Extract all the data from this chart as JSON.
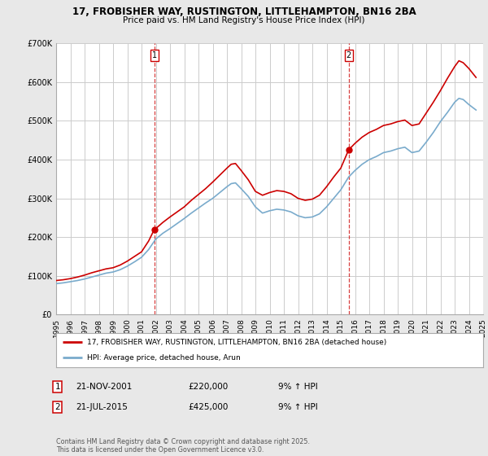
{
  "title_line1": "17, FROBISHER WAY, RUSTINGTON, LITTLEHAMPTON, BN16 2BA",
  "title_line2": "Price paid vs. HM Land Registry's House Price Index (HPI)",
  "background_color": "#e8e8e8",
  "plot_bg_color": "#ffffff",
  "grid_color": "#cccccc",
  "red_color": "#cc0000",
  "blue_color": "#7aabcc",
  "purchase1_date": "21-NOV-2001",
  "purchase1_price": 220000,
  "purchase1_price_str": "£220,000",
  "purchase1_hpi": "9% ↑ HPI",
  "purchase2_date": "21-JUL-2015",
  "purchase2_price": 425000,
  "purchase2_price_str": "£425,000",
  "purchase2_hpi": "9% ↑ HPI",
  "legend_label_red": "17, FROBISHER WAY, RUSTINGTON, LITTLEHAMPTON, BN16 2BA (detached house)",
  "legend_label_blue": "HPI: Average price, detached house, Arun",
  "footer": "Contains HM Land Registry data © Crown copyright and database right 2025.\nThis data is licensed under the Open Government Licence v3.0.",
  "xmin": 1995,
  "xmax": 2025,
  "ymin": 0,
  "ymax": 700000,
  "purchase1_year": 2001.9,
  "purchase2_year": 2015.55,
  "red_x": [
    1995.0,
    1995.5,
    1996.0,
    1996.5,
    1997.0,
    1997.5,
    1998.0,
    1998.5,
    1999.0,
    1999.5,
    2000.0,
    2000.5,
    2001.0,
    2001.5,
    2001.9,
    2002.0,
    2002.5,
    2003.0,
    2003.5,
    2004.0,
    2004.5,
    2005.0,
    2005.5,
    2006.0,
    2006.5,
    2007.0,
    2007.3,
    2007.6,
    2008.0,
    2008.5,
    2009.0,
    2009.5,
    2010.0,
    2010.5,
    2011.0,
    2011.5,
    2012.0,
    2012.5,
    2013.0,
    2013.5,
    2014.0,
    2014.5,
    2015.0,
    2015.55,
    2016.0,
    2016.5,
    2017.0,
    2017.5,
    2018.0,
    2018.5,
    2019.0,
    2019.5,
    2020.0,
    2020.5,
    2021.0,
    2021.5,
    2022.0,
    2022.5,
    2023.0,
    2023.3,
    2023.6,
    2024.0,
    2024.5
  ],
  "red_y": [
    88000,
    90000,
    93000,
    97000,
    102000,
    108000,
    113000,
    118000,
    121000,
    128000,
    138000,
    150000,
    162000,
    190000,
    220000,
    222000,
    238000,
    252000,
    265000,
    278000,
    295000,
    310000,
    325000,
    342000,
    360000,
    378000,
    388000,
    390000,
    372000,
    348000,
    318000,
    308000,
    315000,
    320000,
    318000,
    312000,
    300000,
    295000,
    298000,
    308000,
    330000,
    355000,
    378000,
    425000,
    442000,
    458000,
    470000,
    478000,
    488000,
    492000,
    498000,
    502000,
    488000,
    492000,
    520000,
    548000,
    578000,
    610000,
    640000,
    655000,
    650000,
    635000,
    612000
  ],
  "blue_x": [
    1995.0,
    1995.5,
    1996.0,
    1996.5,
    1997.0,
    1997.5,
    1998.0,
    1998.5,
    1999.0,
    1999.5,
    2000.0,
    2000.5,
    2001.0,
    2001.5,
    2002.0,
    2002.5,
    2003.0,
    2003.5,
    2004.0,
    2004.5,
    2005.0,
    2005.5,
    2006.0,
    2006.5,
    2007.0,
    2007.3,
    2007.6,
    2008.0,
    2008.5,
    2009.0,
    2009.5,
    2010.0,
    2010.5,
    2011.0,
    2011.5,
    2012.0,
    2012.5,
    2013.0,
    2013.5,
    2014.0,
    2014.5,
    2015.0,
    2015.55,
    2016.0,
    2016.5,
    2017.0,
    2017.5,
    2018.0,
    2018.5,
    2019.0,
    2019.5,
    2020.0,
    2020.5,
    2021.0,
    2021.5,
    2022.0,
    2022.5,
    2023.0,
    2023.3,
    2023.6,
    2024.0,
    2024.5
  ],
  "blue_y": [
    80000,
    82000,
    85000,
    88000,
    92000,
    97000,
    102000,
    107000,
    110000,
    116000,
    125000,
    136000,
    148000,
    168000,
    195000,
    210000,
    222000,
    235000,
    248000,
    262000,
    275000,
    288000,
    300000,
    315000,
    330000,
    338000,
    340000,
    325000,
    305000,
    278000,
    262000,
    268000,
    272000,
    270000,
    265000,
    255000,
    250000,
    252000,
    260000,
    278000,
    300000,
    322000,
    355000,
    372000,
    388000,
    400000,
    408000,
    418000,
    422000,
    428000,
    432000,
    418000,
    422000,
    445000,
    470000,
    498000,
    522000,
    548000,
    558000,
    555000,
    542000,
    528000
  ],
  "yticks": [
    0,
    100000,
    200000,
    300000,
    400000,
    500000,
    600000,
    700000
  ],
  "ylabels": [
    "£0",
    "£100K",
    "£200K",
    "£300K",
    "£400K",
    "£500K",
    "£600K",
    "£700K"
  ]
}
